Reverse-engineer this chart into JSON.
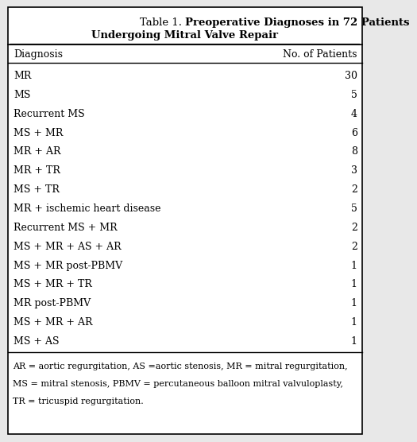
{
  "title_normal": "Table 1. ",
  "title_bold1": "Preoperative Diagnoses in 72 Patients",
  "title_bold2": "Undergoing Mitral Valve Repair",
  "col1_header": "Diagnosis",
  "col2_header": "No. of Patients",
  "rows": [
    [
      "MR",
      "30"
    ],
    [
      "MS",
      "5"
    ],
    [
      "Recurrent MS",
      "4"
    ],
    [
      "MS + MR",
      "6"
    ],
    [
      "MR + AR",
      "8"
    ],
    [
      "MR + TR",
      "3"
    ],
    [
      "MS + TR",
      "2"
    ],
    [
      "MR + ischemic heart disease",
      "5"
    ],
    [
      "Recurrent MS + MR",
      "2"
    ],
    [
      "MS + MR + AS + AR",
      "2"
    ],
    [
      "MS + MR post-PBMV",
      "1"
    ],
    [
      "MS + MR + TR",
      "1"
    ],
    [
      "MR post-PBMV",
      "1"
    ],
    [
      "MS + MR + AR",
      "1"
    ],
    [
      "MS + AS",
      "1"
    ]
  ],
  "footnote_lines": [
    "AR = aortic regurgitation, AS =aortic stenosis, MR = mitral regurgitation,",
    "MS = mitral stenosis, PBMV = percutaneous balloon mitral valvuloplasty,",
    "TR = tricuspid regurgitation."
  ],
  "bg_color": "#e8e8e8",
  "table_bg": "#ffffff",
  "text_color": "#000000",
  "border_color": "#000000",
  "title_fontsize": 9.5,
  "header_fontsize": 9.0,
  "row_fontsize": 9.0,
  "footnote_fontsize": 8.0
}
